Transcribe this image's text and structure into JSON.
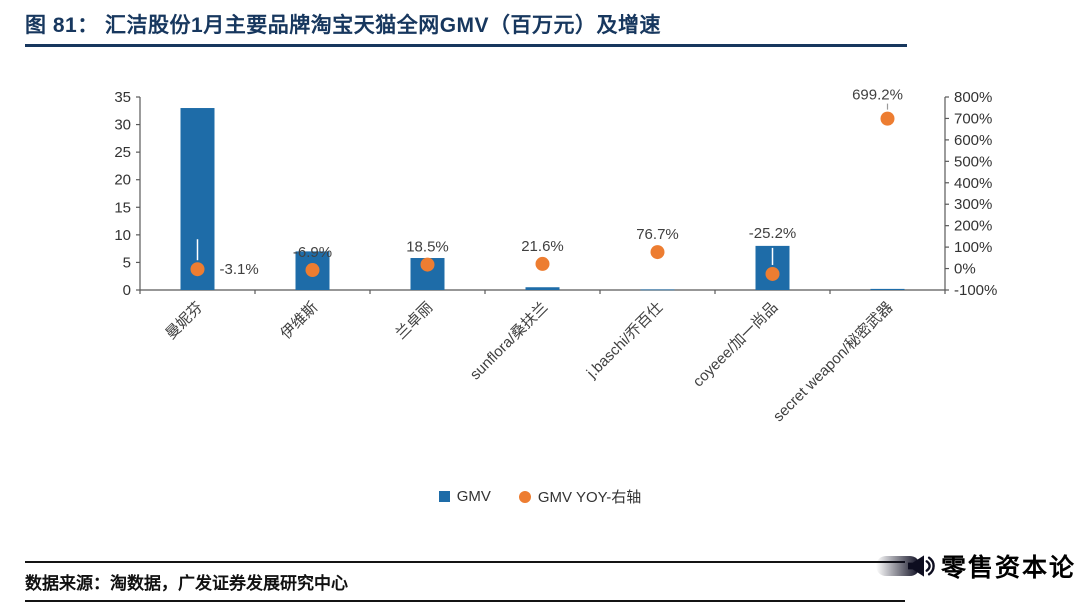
{
  "title": {
    "label": "图 81：  汇洁股份1月主要品牌淘宝天猫全网GMV（百万元）及增速"
  },
  "chart_data": {
    "type": "bar",
    "title": "汇洁股份1月主要品牌淘宝天猫全网GMV（百万元）及增速",
    "categories": [
      "曼妮芬",
      "伊维斯",
      "兰卓丽",
      "sunflora/桑扶兰",
      "j.baschi/乔百仕",
      "coyeee/加一尚品",
      "secret weapon/秘密武器"
    ],
    "series": [
      {
        "name": "GMV",
        "type": "bar",
        "axis": "left",
        "values": [
          33,
          7,
          5.8,
          0.5,
          0.1,
          8,
          0.2
        ]
      },
      {
        "name": "GMV YOY-右轴",
        "type": "scatter",
        "axis": "right",
        "values": [
          -3.1,
          -6.9,
          18.5,
          21.6,
          76.7,
          -25.2,
          699.2
        ],
        "labels": [
          "-3.1%",
          "-6.9%",
          "18.5%",
          "21.6%",
          "76.7%",
          "-25.2%",
          "699.2%"
        ]
      }
    ],
    "left_axis": {
      "min": 0,
      "max": 35,
      "step": 5
    },
    "right_axis": {
      "min": -100,
      "max": 800,
      "step": 100,
      "suffix": "%"
    },
    "grid": false,
    "legend_position": "bottom"
  },
  "legend": {
    "items": [
      {
        "label": "GMV"
      },
      {
        "label": "GMV YOY-右轴"
      }
    ]
  },
  "footer": {
    "source": "数据来源：淘数据，广发证券发展研究中心"
  },
  "watermark": {
    "text": "零售资本论"
  },
  "colors": {
    "bar": "#1E6CA8",
    "dot": "#ED7D31",
    "title": "#17375E",
    "axis": "#595959",
    "text": "#404040",
    "tick_text": "#333333"
  }
}
